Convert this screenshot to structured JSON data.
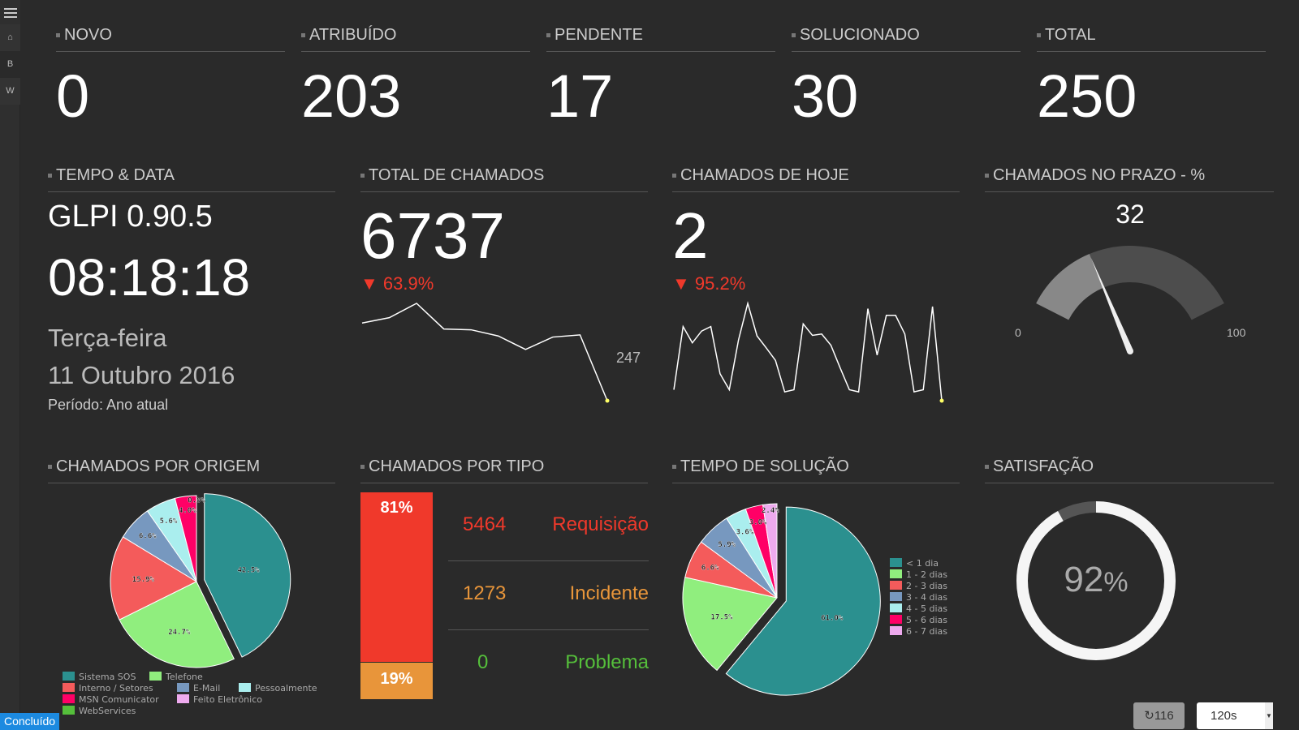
{
  "sidebar": {
    "items": [
      {
        "icon": "menu-icon"
      },
      {
        "icon": "home-icon"
      },
      {
        "label": "B"
      },
      {
        "label": "W"
      }
    ]
  },
  "status": {
    "novo": {
      "label": "NOVO",
      "value": "0"
    },
    "atribuido": {
      "label": "ATRIBUÍDO",
      "value": "203"
    },
    "pendente": {
      "label": "PENDENTE",
      "value": "17"
    },
    "solucionado": {
      "label": "SOLUCIONADO",
      "value": "30"
    },
    "total": {
      "label": "TOTAL",
      "value": "250"
    }
  },
  "tempo": {
    "title": "TEMPO & DATA",
    "version": "GLPI 0.90.5",
    "time": "08:18:18",
    "weekday": "Terça-feira",
    "date": "11 Outubro 2016",
    "period": "Período: Ano atual"
  },
  "total_chamados": {
    "title": "TOTAL DE CHAMADOS",
    "value": "6737",
    "change": "63.9%",
    "spark_label": "247",
    "sparkline": [
      295,
      315,
      368,
      273,
      270,
      247,
      197,
      243,
      251,
      7
    ]
  },
  "hoje": {
    "title": "CHAMADOS DE HOJE",
    "value": "2",
    "change": "95.2%",
    "sparkline": [
      48,
      285,
      224,
      268,
      285,
      108,
      48,
      235,
      372,
      250,
      205,
      158,
      40,
      48,
      295,
      252,
      257,
      215,
      130,
      48,
      40,
      352,
      178,
      327,
      327,
      257,
      40,
      48,
      360,
      7
    ]
  },
  "prazo": {
    "title": "CHAMADOS NO PRAZO - %",
    "value": "32",
    "min": "0",
    "max": "100",
    "value_num": 32
  },
  "colors": {
    "accent_red": "#f0392b",
    "accent_orange": "#e8953a",
    "accent_green": "#55bf3b"
  },
  "chart_data": [
    {
      "type": "pie",
      "title": "CHAMADOS POR ORIGEM",
      "legend": "bottom",
      "categories": [
        "Sistema SOS",
        "Telefone",
        "Interno / Setores",
        "E-Mail",
        "Pessoalmente",
        "MSN Comunicator",
        "Feito Eletrônico",
        "WebServices"
      ],
      "values": [
        42.5,
        24.7,
        15.9,
        6.6,
        5.6,
        4.0,
        0.0,
        0.0
      ],
      "labels": [
        "42.5%",
        "24.7%",
        "15.9%",
        "6.6%",
        "5.6%",
        "4.0%",
        "0.0%",
        ""
      ],
      "colors": [
        "#2b908f",
        "#90ee7e",
        "#f45b5b",
        "#7798bf",
        "#aaeeee",
        "#ff0066",
        "#eeaaee",
        "#55bf3b"
      ]
    },
    {
      "type": "bar",
      "title": "CHAMADOS POR TIPO",
      "categories": [
        "Requisição",
        "Incidente",
        "Problema"
      ],
      "values": [
        5464,
        1273,
        0
      ],
      "percent_labels": [
        "81%",
        "19%"
      ],
      "colors": [
        "#f0392b",
        "#e8953a",
        "#55bf3b"
      ]
    },
    {
      "type": "pie",
      "title": "TEMPO DE SOLUÇÃO",
      "legend": "right",
      "categories": [
        "< 1 dia",
        "1 - 2 dias",
        "2 - 3 dias",
        "3 - 4 dias",
        "4 - 5 dias",
        "5 - 6 dias",
        "6 - 7 dias"
      ],
      "values": [
        61.0,
        17.5,
        6.6,
        5.9,
        3.6,
        3.0,
        2.4
      ],
      "labels": [
        "61.0%",
        "17.5%",
        "6.6%",
        "5.9%",
        "3.6%",
        "3.0%",
        "2.4%"
      ],
      "colors": [
        "#2b908f",
        "#90ee7e",
        "#f45b5b",
        "#7798bf",
        "#aaeeee",
        "#ff0066",
        "#eeaaee"
      ]
    },
    {
      "type": "pie",
      "title": "SATISFAÇÃO",
      "value": 92,
      "label": "92",
      "unit": "%"
    }
  ],
  "footer": {
    "status": "Concluído",
    "refresh_count": "116",
    "interval": "120s"
  }
}
